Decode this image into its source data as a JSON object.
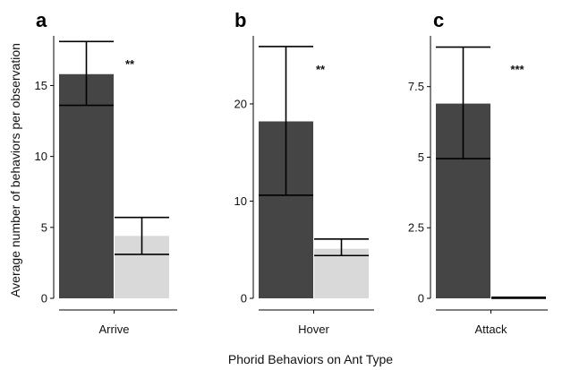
{
  "chart_data": {
    "type": "bar",
    "ylabel": "Average number of behaviors per observation",
    "xlabel": "Phorid Behaviors on Ant Type",
    "colors": {
      "dark": "#454545",
      "light": "#d9d9d9"
    },
    "panels": [
      {
        "letter": "a",
        "category": "Arrive",
        "ylim": [
          0,
          18.5
        ],
        "yticks": [
          0,
          5,
          10,
          15
        ],
        "ytick_labels": [
          "0",
          "5",
          "10",
          "15"
        ],
        "significance": "**",
        "bars": [
          {
            "value": 15.8,
            "err_low": 13.6,
            "err_high": 18.1,
            "shade": "dark"
          },
          {
            "value": 4.4,
            "err_low": 3.1,
            "err_high": 5.7,
            "shade": "light"
          }
        ]
      },
      {
        "letter": "b",
        "category": "Hover",
        "ylim": [
          0,
          27
        ],
        "yticks": [
          0,
          10,
          20
        ],
        "ytick_labels": [
          "0",
          "10",
          "20"
        ],
        "significance": "**",
        "bars": [
          {
            "value": 18.2,
            "err_low": 10.6,
            "err_high": 25.9,
            "shade": "dark"
          },
          {
            "value": 5.1,
            "err_low": 4.4,
            "err_high": 6.1,
            "shade": "light"
          }
        ]
      },
      {
        "letter": "c",
        "category": "Attack",
        "ylim": [
          0,
          9.3
        ],
        "yticks": [
          0,
          2.5,
          5,
          7.5
        ],
        "ytick_labels": [
          "0",
          "2.5",
          "5",
          "7.5"
        ],
        "significance": "***",
        "bars": [
          {
            "value": 6.9,
            "err_low": 4.95,
            "err_high": 8.9,
            "shade": "dark"
          },
          {
            "value": 0.02,
            "err_low": 0,
            "err_high": 0.04,
            "shade": "light"
          }
        ]
      }
    ]
  }
}
